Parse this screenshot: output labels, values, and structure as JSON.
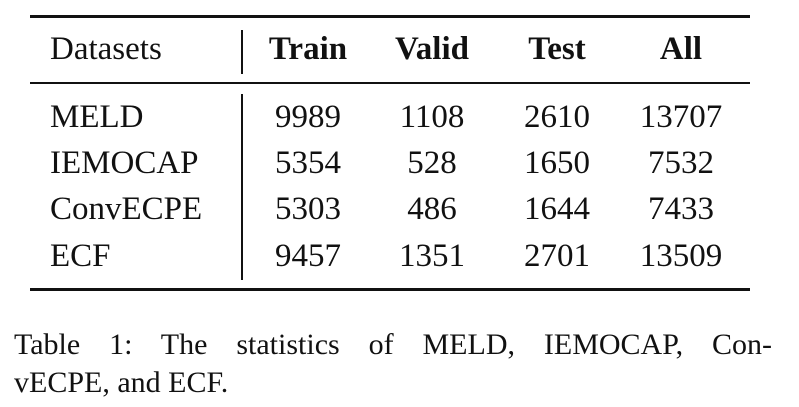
{
  "table": {
    "header": [
      "Datasets",
      "Train",
      "Valid",
      "Test",
      "All"
    ],
    "rows": [
      [
        "MELD",
        9989,
        1108,
        2610,
        13707
      ],
      [
        "IEMOCAP",
        5354,
        528,
        1650,
        7532
      ],
      [
        "ConvECPE",
        5303,
        486,
        1644,
        7433
      ],
      [
        "ECF",
        9457,
        1351,
        2701,
        13509
      ]
    ]
  },
  "caption": {
    "lines": [
      "Table 1:  The statistics of MELD, IEMOCAP, Con-",
      "vECPE, and ECF."
    ]
  }
}
